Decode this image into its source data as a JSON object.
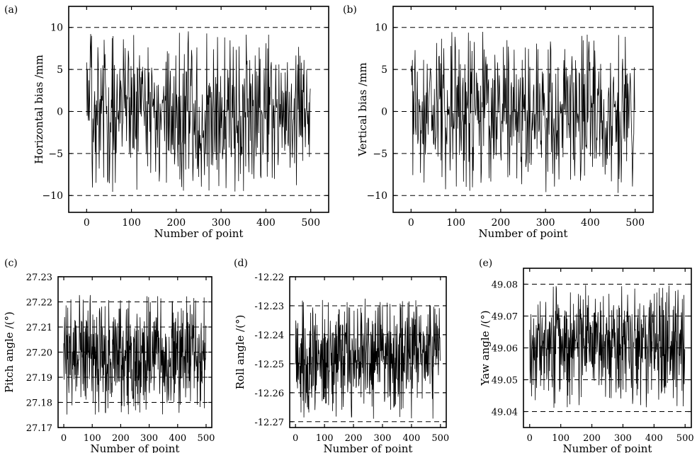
{
  "chart_data": [
    {
      "panel_label": "(a)",
      "type": "line",
      "xlabel": "Number of point",
      "ylabel": "Horizontal bias /mm",
      "xlim": [
        -40,
        540
      ],
      "ylim": [
        -12,
        12.5
      ],
      "xticks": [
        0,
        100,
        200,
        300,
        400,
        500
      ],
      "yticks": [
        -10,
        -5,
        0,
        5,
        10
      ],
      "xtick_labels": [
        "0",
        "100",
        "200",
        "300",
        "400",
        "500"
      ],
      "ytick_labels": [
        "−10",
        "−5",
        "0",
        "5",
        "10"
      ],
      "hlines": [
        -10,
        -5,
        0,
        5,
        10
      ],
      "grid": "dashed horizontal lines at y ticks",
      "series": [
        {
          "name": "Horizontal bias",
          "n_points": 500,
          "x_start": 0,
          "mean": 0,
          "min": -9.6,
          "max": 9.6,
          "pattern": "random noise approximately uniform within range"
        }
      ]
    },
    {
      "panel_label": "(b)",
      "type": "line",
      "xlabel": "Number of point",
      "ylabel": "Vertical bias /mm",
      "xlim": [
        -40,
        540
      ],
      "ylim": [
        -12,
        12.5
      ],
      "xticks": [
        0,
        100,
        200,
        300,
        400,
        500
      ],
      "yticks": [
        -10,
        -5,
        0,
        5,
        10
      ],
      "xtick_labels": [
        "0",
        "100",
        "200",
        "300",
        "400",
        "500"
      ],
      "ytick_labels": [
        "−10",
        "−5",
        "0",
        "5",
        "10"
      ],
      "hlines": [
        -10,
        -5,
        0,
        5,
        10
      ],
      "grid": "dashed horizontal lines at y ticks",
      "series": [
        {
          "name": "Vertical bias",
          "n_points": 500,
          "x_start": 0,
          "mean": 0,
          "min": -9.8,
          "max": 9.8,
          "pattern": "random noise approximately uniform within range"
        }
      ]
    },
    {
      "panel_label": "(c)",
      "type": "line",
      "xlabel": "Number of point",
      "ylabel": "Pitch angle /(°)",
      "xlim": [
        -20,
        520
      ],
      "ylim": [
        27.17,
        27.23
      ],
      "xticks": [
        0,
        100,
        200,
        300,
        400,
        500
      ],
      "yticks": [
        27.17,
        27.18,
        27.19,
        27.2,
        27.21,
        27.22,
        27.23
      ],
      "xtick_labels": [
        "0",
        "100",
        "200",
        "300",
        "400",
        "500"
      ],
      "ytick_labels": [
        "27.17",
        "27.18",
        "27.19",
        "27.20",
        "27.21",
        "27.22",
        "27.23"
      ],
      "hlines": [
        27.18,
        27.19,
        27.2,
        27.21,
        27.22
      ],
      "grid": "dashed horizontal lines",
      "series": [
        {
          "name": "Pitch angle",
          "n_points": 500,
          "x_start": 0,
          "mean": 27.199,
          "min": 27.175,
          "max": 27.223,
          "pattern": "random noise approximately uniform within range"
        }
      ]
    },
    {
      "panel_label": "(d)",
      "type": "line",
      "xlabel": "Number of point",
      "ylabel": "Roll angle /(°)",
      "xlim": [
        -20,
        520
      ],
      "ylim": [
        -12.272,
        -12.22
      ],
      "xticks": [
        0,
        100,
        200,
        300,
        400,
        500
      ],
      "yticks": [
        -12.27,
        -12.26,
        -12.25,
        -12.24,
        -12.23,
        -12.22
      ],
      "xtick_labels": [
        "0",
        "100",
        "200",
        "300",
        "400",
        "500"
      ],
      "ytick_labels": [
        "-12.27",
        "-12.26",
        "-12.25",
        "-12.24",
        "-12.23",
        "-12.22"
      ],
      "hlines": [
        -12.27,
        -12.26,
        -12.25,
        -12.24,
        -12.23
      ],
      "grid": "dashed horizontal lines",
      "series": [
        {
          "name": "Roll angle",
          "n_points": 500,
          "x_start": 0,
          "mean": -12.248,
          "min": -12.269,
          "max": -12.227,
          "pattern": "random noise approximately uniform within range"
        }
      ]
    },
    {
      "panel_label": "(e)",
      "type": "line",
      "xlabel": "Number of point",
      "ylabel": "Yaw angle /(°)",
      "xlim": [
        -20,
        520
      ],
      "ylim": [
        49.035,
        49.085
      ],
      "xticks": [
        0,
        100,
        200,
        300,
        400,
        500
      ],
      "yticks": [
        49.04,
        49.05,
        49.06,
        49.07,
        49.08
      ],
      "xtick_labels": [
        "0",
        "100",
        "200",
        "300",
        "400",
        "500"
      ],
      "ytick_labels": [
        "49.04",
        "49.05",
        "49.06",
        "49.07",
        "49.08"
      ],
      "hlines": [
        49.04,
        49.05,
        49.06,
        49.07,
        49.08
      ],
      "grid": "dashed horizontal lines",
      "series": [
        {
          "name": "Yaw angle",
          "n_points": 500,
          "x_start": 0,
          "mean": 49.06,
          "min": 49.041,
          "max": 49.08,
          "pattern": "random noise approximately uniform within range"
        }
      ]
    }
  ]
}
